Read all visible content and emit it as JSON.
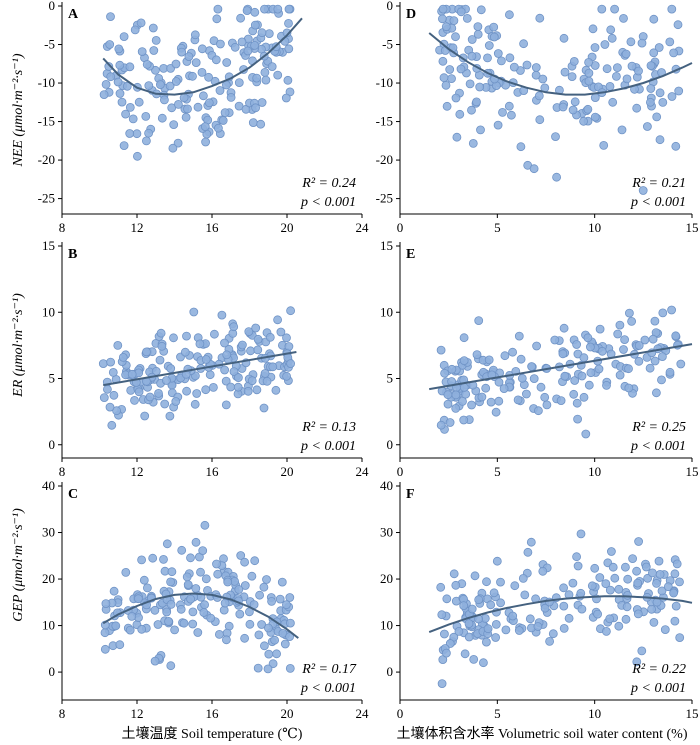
{
  "colors": {
    "point_fill": "#8fb0dd",
    "point_stroke": "#6f93c6",
    "curve": "#44617f",
    "axis": "#000000"
  },
  "axis_titles": {
    "x_left": "土壤温度 Soil temperature (℃)",
    "x_right": "土壤体积含水率 Volumetric soil water content (%)",
    "y_top": "NEE (μmol·m⁻²·s⁻¹)",
    "y_mid": "ER (μmol·m⁻²·s⁻¹)",
    "y_bottom": "GEP (μmol·m⁻²·s⁻¹)"
  },
  "chart_data": [
    {
      "panel": "A",
      "type": "scatter",
      "xlabel": "",
      "ylabel": "NEE (μmol·m⁻²·s⁻¹)",
      "xlim": [
        8,
        24
      ],
      "ylim": [
        -27,
        0
      ],
      "xticks": [
        8,
        12,
        16,
        20,
        24
      ],
      "yticks": [
        -25,
        -20,
        -15,
        -10,
        -5,
        0
      ],
      "r2": "R² = 0.24",
      "p": "p < 0.001",
      "fit": {
        "x": [
          10.2,
          11,
          12,
          13,
          14,
          15,
          16,
          17,
          18,
          19,
          20,
          20.8
        ],
        "y": [
          -6.8,
          -8.9,
          -10.6,
          -11.4,
          -11.5,
          -11.2,
          -10.4,
          -9.4,
          -8.0,
          -6.1,
          -3.8,
          -1.6
        ]
      }
    },
    {
      "panel": "B",
      "type": "scatter",
      "xlabel": "",
      "ylabel": "ER (μmol·m⁻²·s⁻¹)",
      "xlim": [
        8,
        24
      ],
      "ylim": [
        -1,
        15
      ],
      "xticks": [
        8,
        12,
        16,
        20,
        24
      ],
      "yticks": [
        0,
        5,
        10,
        15
      ],
      "r2": "R² = 0.13",
      "p": "p < 0.001",
      "fit": {
        "x": [
          10.2,
          20.5
        ],
        "y": [
          4.5,
          7.0
        ]
      }
    },
    {
      "panel": "C",
      "type": "scatter",
      "xlabel": "土壤温度 Soil temperature (℃)",
      "ylabel": "GEP (μmol·m⁻²·s⁻¹)",
      "xlim": [
        8,
        24
      ],
      "ylim": [
        -6,
        40
      ],
      "xticks": [
        8,
        12,
        16,
        20,
        24
      ],
      "yticks": [
        0,
        10,
        20,
        30,
        40
      ],
      "r2": "R² = 0.17",
      "p": "p < 0.001",
      "fit": {
        "x": [
          10.2,
          11,
          12,
          13,
          14,
          15,
          16,
          17,
          18,
          19,
          20,
          20.6
        ],
        "y": [
          10.5,
          12.4,
          14.2,
          15.7,
          16.6,
          16.9,
          16.6,
          15.6,
          14.0,
          11.9,
          9.2,
          7.3
        ]
      }
    },
    {
      "panel": "D",
      "type": "scatter",
      "xlabel": "",
      "ylabel": "",
      "xlim": [
        0,
        15
      ],
      "ylim": [
        -27,
        0
      ],
      "xticks": [
        0,
        5,
        10,
        15
      ],
      "yticks": [
        -25,
        -20,
        -15,
        -10,
        -5,
        0
      ],
      "r2": "R² = 0.21",
      "p": "p < 0.001",
      "fit": {
        "x": [
          1.5,
          2.5,
          3.5,
          4.5,
          5.5,
          6.5,
          7.5,
          8.5,
          9.5,
          10.5,
          11.5,
          12.5,
          13.5,
          14.5,
          15
        ],
        "y": [
          -3.5,
          -5.6,
          -7.3,
          -8.7,
          -9.8,
          -10.6,
          -11.2,
          -11.5,
          -11.5,
          -11.2,
          -10.7,
          -10.0,
          -9.1,
          -8.0,
          -7.4
        ]
      }
    },
    {
      "panel": "E",
      "type": "scatter",
      "xlabel": "",
      "ylabel": "",
      "xlim": [
        0,
        15
      ],
      "ylim": [
        -1,
        15
      ],
      "xticks": [
        0,
        5,
        10,
        15
      ],
      "yticks": [
        0,
        5,
        10,
        15
      ],
      "r2": "R² = 0.25",
      "p": "p < 0.001",
      "fit": {
        "x": [
          1.5,
          15
        ],
        "y": [
          4.2,
          7.6
        ]
      }
    },
    {
      "panel": "F",
      "type": "scatter",
      "xlabel": "土壤体积含水率 Volumetric soil water content (%)",
      "ylabel": "",
      "xlim": [
        0,
        15
      ],
      "ylim": [
        -6,
        40
      ],
      "xticks": [
        0,
        5,
        10,
        15
      ],
      "yticks": [
        0,
        10,
        20,
        30,
        40
      ],
      "r2": "R² = 0.22",
      "p": "p < 0.001",
      "fit": {
        "x": [
          1.5,
          2.5,
          3.5,
          4.5,
          5.5,
          6.5,
          7.5,
          8.5,
          9.5,
          10.5,
          11.5,
          12.5,
          13.5,
          14.5,
          15
        ],
        "y": [
          8.6,
          10.2,
          11.6,
          12.8,
          13.8,
          14.6,
          15.3,
          15.8,
          16.1,
          16.3,
          16.3,
          16.1,
          15.8,
          15.3,
          14.9
        ]
      }
    }
  ]
}
